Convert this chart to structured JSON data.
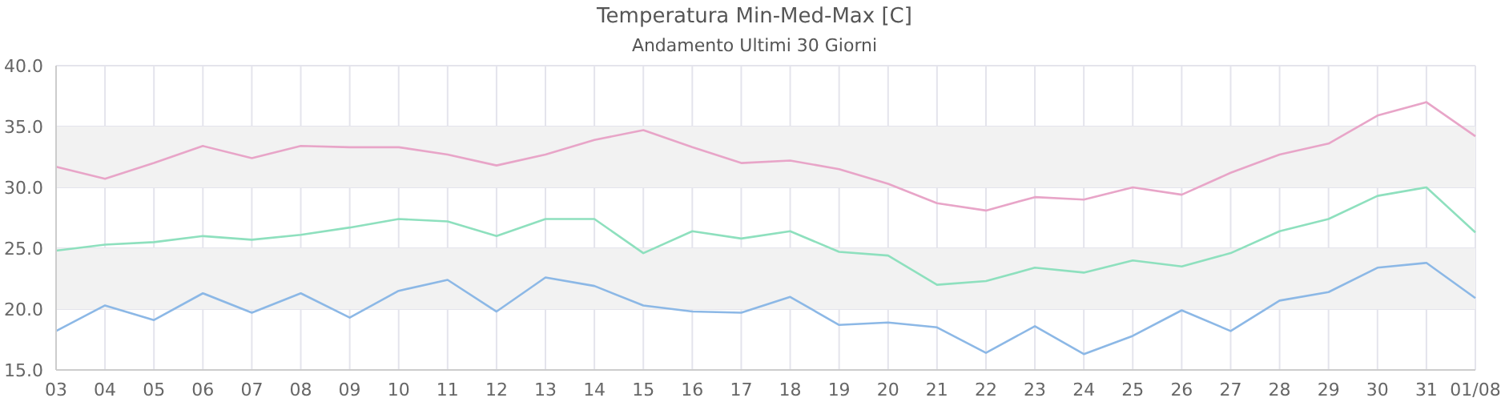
{
  "chart_data": {
    "type": "line",
    "title": "Temperatura Min-Med-Max [C]",
    "subtitle": "Andamento Ultimi 30 Giorni",
    "categories": [
      "03",
      "04",
      "05",
      "06",
      "07",
      "08",
      "09",
      "10",
      "11",
      "12",
      "13",
      "14",
      "15",
      "16",
      "17",
      "18",
      "19",
      "20",
      "21",
      "22",
      "23",
      "24",
      "25",
      "26",
      "27",
      "28",
      "29",
      "30",
      "31",
      "01/08"
    ],
    "series": [
      {
        "color": "#e8a5c8",
        "values": [
          31.7,
          30.7,
          32.0,
          33.4,
          32.4,
          33.4,
          33.3,
          33.3,
          32.7,
          31.8,
          32.7,
          33.9,
          34.7,
          33.3,
          32.0,
          32.2,
          31.5,
          30.3,
          28.7,
          28.1,
          29.2,
          29.0,
          30.0,
          29.4,
          31.2,
          32.7,
          33.6,
          35.9,
          37.0,
          34.2
        ]
      },
      {
        "color": "#8ee0be",
        "values": [
          24.8,
          25.3,
          25.5,
          26.0,
          25.7,
          26.1,
          26.7,
          27.4,
          27.2,
          26.0,
          27.4,
          27.4,
          24.6,
          26.4,
          25.8,
          26.4,
          24.7,
          24.4,
          22.0,
          22.3,
          23.4,
          23.0,
          24.0,
          23.5,
          24.6,
          26.4,
          27.4,
          29.3,
          30.0,
          26.3
        ]
      },
      {
        "color": "#8cb8e6",
        "values": [
          18.2,
          20.3,
          19.1,
          21.3,
          19.7,
          21.3,
          19.3,
          21.5,
          22.4,
          19.8,
          22.6,
          21.9,
          20.3,
          19.8,
          19.7,
          21.0,
          18.7,
          18.9,
          18.5,
          16.4,
          18.6,
          16.3,
          17.8,
          19.9,
          18.2,
          20.7,
          21.4,
          23.4,
          23.8,
          20.9
        ]
      }
    ],
    "ylim": [
      15,
      40
    ],
    "yticks": [
      {
        "value": 15,
        "label": "15.0"
      },
      {
        "value": 20,
        "label": "20.0"
      },
      {
        "value": 25,
        "label": "25.0"
      },
      {
        "value": 30,
        "label": "30.0"
      },
      {
        "value": 35,
        "label": "35.0"
      },
      {
        "value": 40,
        "label": "40.0"
      }
    ],
    "bands": [
      {
        "axis": "y",
        "from": 20,
        "to": 25,
        "color": "#f2f2f2"
      },
      {
        "axis": "y",
        "from": 30,
        "to": 35,
        "color": "#f2f2f2"
      }
    ],
    "grid": true,
    "marker": "none",
    "line_style": "solid"
  }
}
